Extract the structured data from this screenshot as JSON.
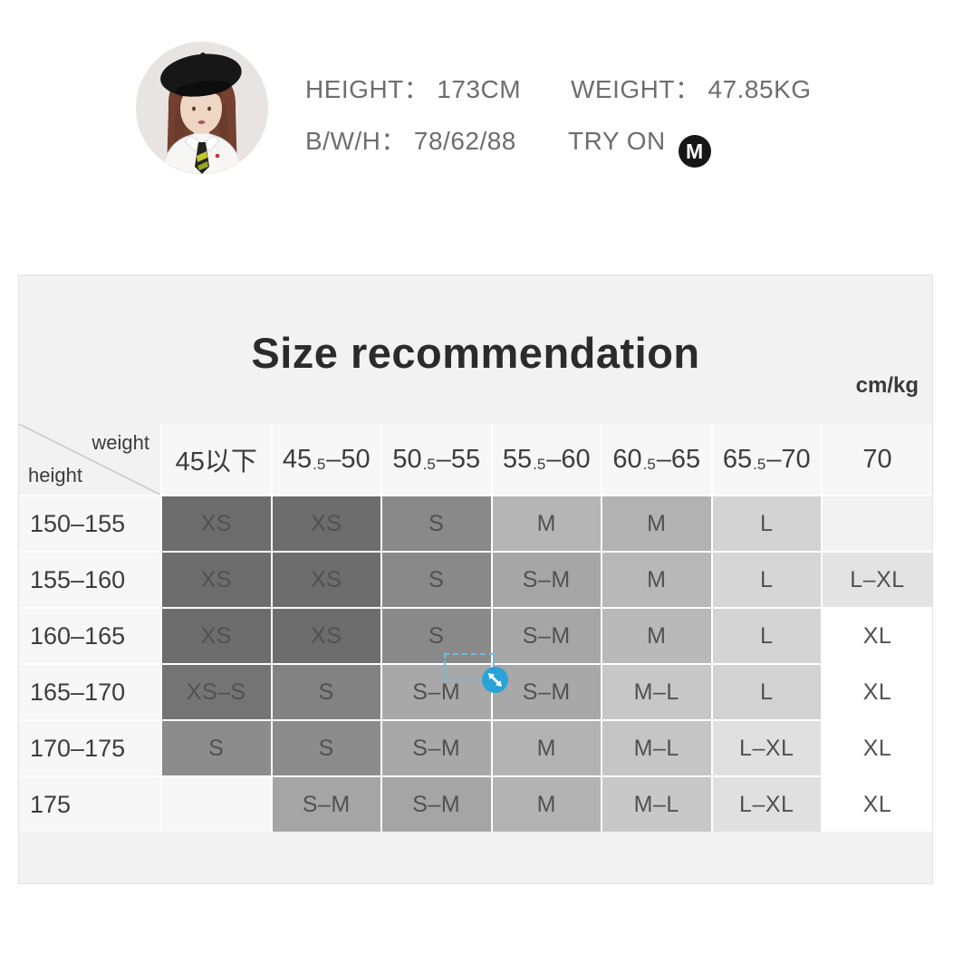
{
  "model_info": {
    "stats": [
      {
        "label": "HEIGHT：",
        "value": "173CM"
      },
      {
        "label": "WEIGHT：",
        "value": "47.85KG"
      },
      {
        "label": "B/W/H：",
        "value": "78/62/88"
      }
    ],
    "try_on": {
      "label": "TRY ON",
      "badge": "M"
    }
  },
  "size_panel": {
    "title": "Size recommendation",
    "unit": "cm/kg",
    "corner_top": "weight",
    "corner_bottom": "height",
    "weight_columns": [
      {
        "parts": [
          {
            "t": "45以下"
          }
        ]
      },
      {
        "parts": [
          {
            "t": "45"
          },
          {
            "t": ".5",
            "sub": true
          },
          {
            "t": "–50"
          }
        ]
      },
      {
        "parts": [
          {
            "t": "50"
          },
          {
            "t": ".5",
            "sub": true
          },
          {
            "t": "–55"
          }
        ]
      },
      {
        "parts": [
          {
            "t": "55"
          },
          {
            "t": ".5",
            "sub": true
          },
          {
            "t": "–60"
          }
        ]
      },
      {
        "parts": [
          {
            "t": "60"
          },
          {
            "t": ".5",
            "sub": true
          },
          {
            "t": "–65"
          }
        ]
      },
      {
        "parts": [
          {
            "t": "65"
          },
          {
            "t": ".5",
            "sub": true
          },
          {
            "t": "–70"
          }
        ]
      },
      {
        "parts": [
          {
            "t": "70"
          }
        ]
      }
    ],
    "rows": [
      {
        "height": "150–155",
        "cells": [
          {
            "size": "XS",
            "bg": "#6d6d6d"
          },
          {
            "size": "XS",
            "bg": "#6d6d6d"
          },
          {
            "size": "S",
            "bg": "#898989"
          },
          {
            "size": "M",
            "bg": "#b5b5b5"
          },
          {
            "size": "M",
            "bg": "#b2b2b2"
          },
          {
            "size": "L",
            "bg": "#d3d3d3"
          },
          {
            "size": "",
            "bg": "#f2f2f2"
          }
        ]
      },
      {
        "height": "155–160",
        "cells": [
          {
            "size": "XS",
            "bg": "#6d6d6d"
          },
          {
            "size": "XS",
            "bg": "#6d6d6d"
          },
          {
            "size": "S",
            "bg": "#898989"
          },
          {
            "size": "S–M",
            "bg": "#a6a6a6"
          },
          {
            "size": "M",
            "bg": "#b8b8b8"
          },
          {
            "size": "L",
            "bg": "#d6d6d6"
          },
          {
            "size": "L–XL",
            "bg": "#e3e3e3"
          }
        ]
      },
      {
        "height": "160–165",
        "cells": [
          {
            "size": "XS",
            "bg": "#6d6d6d"
          },
          {
            "size": "XS",
            "bg": "#6d6d6d"
          },
          {
            "size": "S",
            "bg": "#898989"
          },
          {
            "size": "S–M",
            "bg": "#a6a6a6"
          },
          {
            "size": "M",
            "bg": "#b9b9b9"
          },
          {
            "size": "L",
            "bg": "#d4d4d4"
          },
          {
            "size": "XL",
            "bg": "#ffffff"
          }
        ]
      },
      {
        "height": "165–170",
        "cells": [
          {
            "size": "XS–S",
            "bg": "#747474"
          },
          {
            "size": "S",
            "bg": "#828282"
          },
          {
            "size": "S–M",
            "bg": "#a8a8a8"
          },
          {
            "size": "S–M",
            "bg": "#a8a8a8"
          },
          {
            "size": "M–L",
            "bg": "#c7c7c7"
          },
          {
            "size": "L",
            "bg": "#d2d2d2"
          },
          {
            "size": "XL",
            "bg": "#ffffff"
          }
        ]
      },
      {
        "height": "170–175",
        "cells": [
          {
            "size": "S",
            "bg": "#8c8c8c"
          },
          {
            "size": "S",
            "bg": "#8c8c8c"
          },
          {
            "size": "S–M",
            "bg": "#a8a8a8"
          },
          {
            "size": "M",
            "bg": "#b3b3b3"
          },
          {
            "size": "M–L",
            "bg": "#c5c5c5"
          },
          {
            "size": "L–XL",
            "bg": "#e0e0e0"
          },
          {
            "size": "XL",
            "bg": "#ffffff"
          }
        ]
      },
      {
        "height": "175",
        "cells": [
          {
            "size": "",
            "bg": "#f7f7f7"
          },
          {
            "size": "S–M",
            "bg": "#a5a5a5"
          },
          {
            "size": "S–M",
            "bg": "#a5a5a5"
          },
          {
            "size": "M",
            "bg": "#b3b3b3"
          },
          {
            "size": "M–L",
            "bg": "#c8c8c8"
          },
          {
            "size": "L–XL",
            "bg": "#e0e0e0"
          },
          {
            "size": "XL",
            "bg": "#ffffff"
          }
        ]
      }
    ]
  },
  "annotation": {
    "handle_color": "#29a2d8",
    "box_color": "#70bbdf"
  }
}
